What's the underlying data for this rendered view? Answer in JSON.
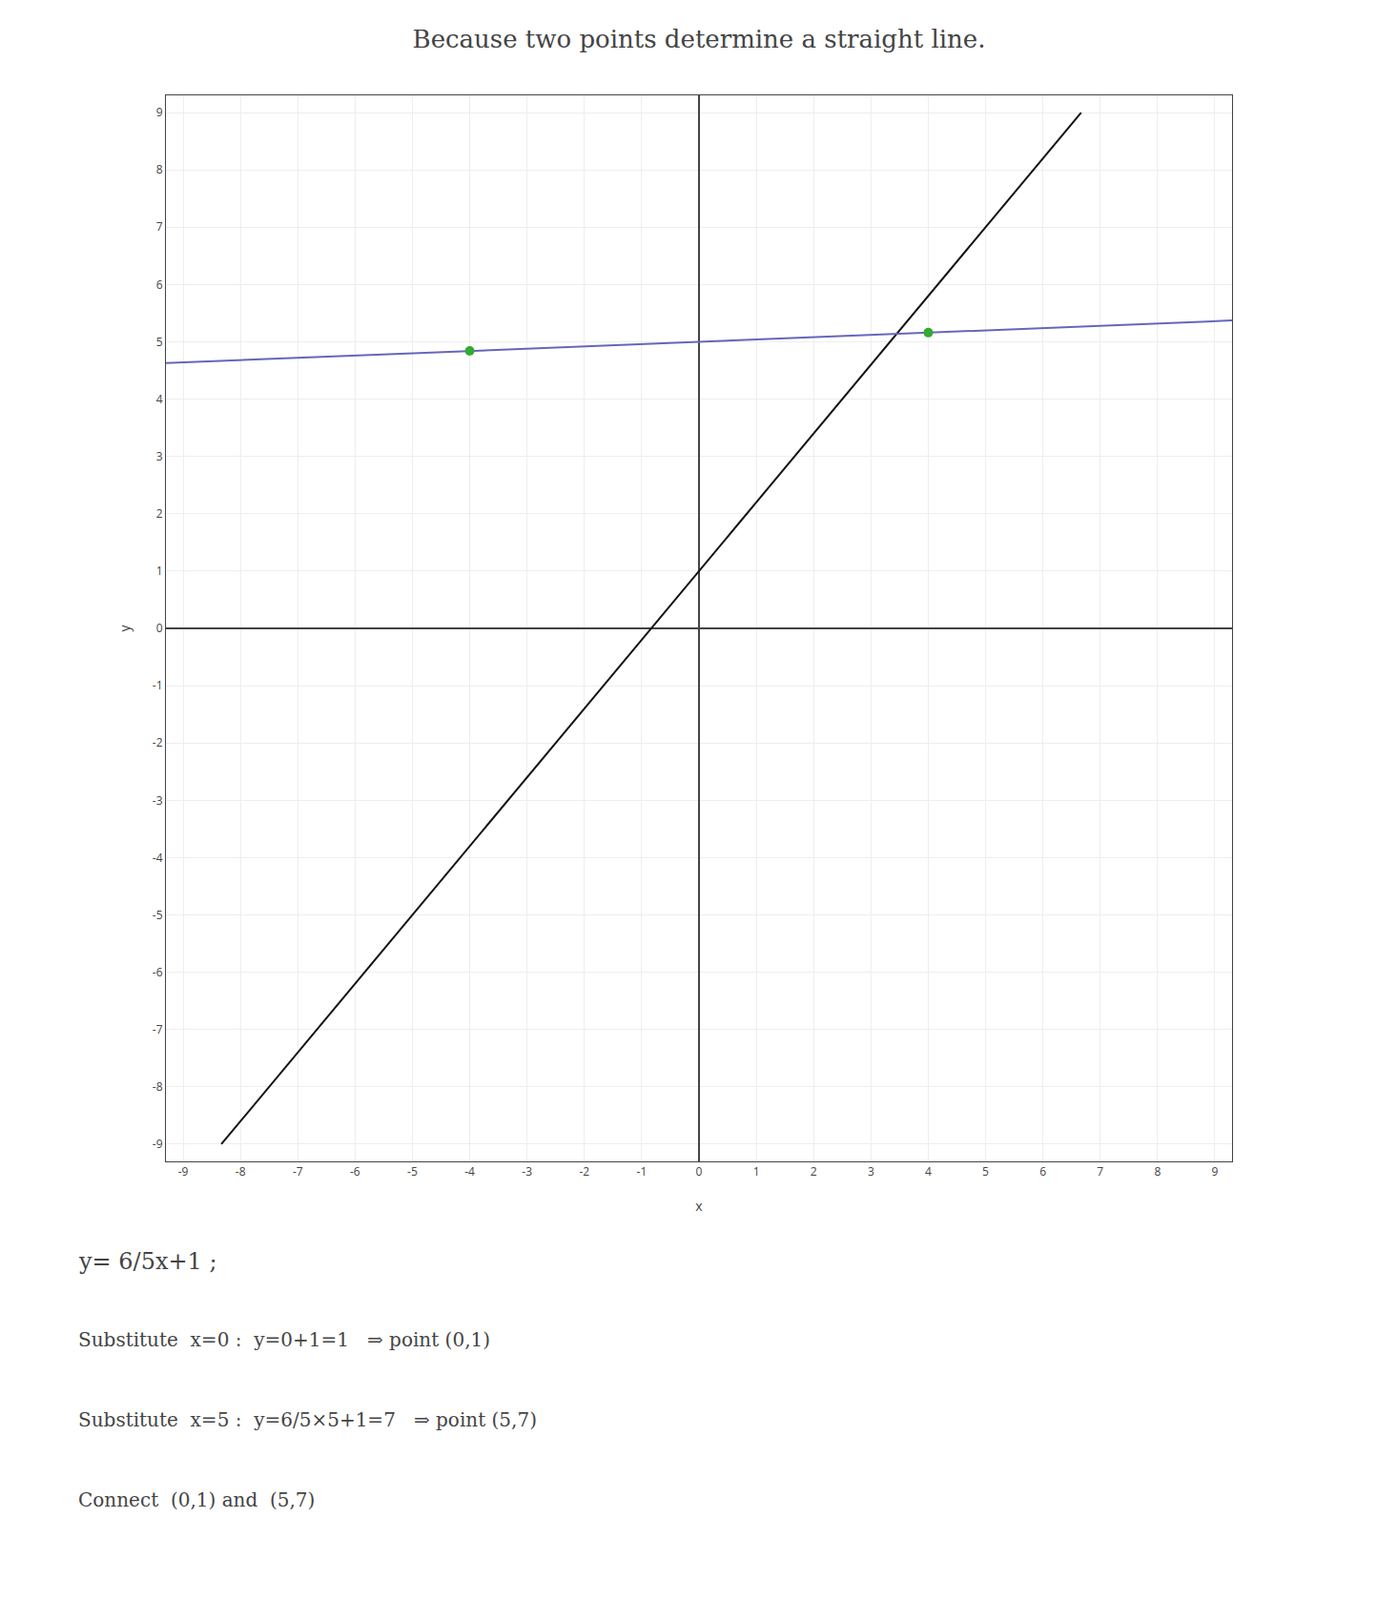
{
  "chart_data": {
    "type": "scatter",
    "title": "Because two points determine a straight line.",
    "xlabel": "x",
    "ylabel": "y",
    "annotations": [
      "y= 6/5x+1 ;",
      "Substitute  x=0 :  y=0+1=1   ⇒ point (0,1)",
      "Substitute  x=5 :  y=6/5×5+1=7   ⇒ point (5,7)",
      "Connect  (0,1) and  (5,7)"
    ],
    "series": [
      {
        "type": "line",
        "color": "#111111",
        "x": [
          -8.333333333333334,
          6.666666666666667
        ],
        "values": [
          -9,
          9
        ]
      },
      {
        "type": "line",
        "color": "#6666bb",
        "x": [
          -9.3,
          9.3
        ],
        "values": [
          4.628,
          5.372
        ]
      },
      {
        "type": "scatter",
        "color": "#33aa33",
        "marker": "circle",
        "x": [
          -4,
          4
        ],
        "values": [
          4.84,
          5.16
        ]
      }
    ],
    "xlim": [
      -9.3,
      9.3
    ],
    "ylim": [
      -9.3,
      9.3
    ],
    "xticks": [
      -9,
      -8,
      -7,
      -6,
      -5,
      -4,
      -3,
      -2,
      -1,
      0,
      1,
      2,
      3,
      4,
      5,
      6,
      7,
      8,
      9
    ],
    "yticks": [
      -9,
      -8,
      -7,
      -6,
      -5,
      -4,
      -3,
      -2,
      -1,
      0,
      1,
      2,
      3,
      4,
      5,
      6,
      7,
      8,
      9
    ],
    "grid": true
  }
}
